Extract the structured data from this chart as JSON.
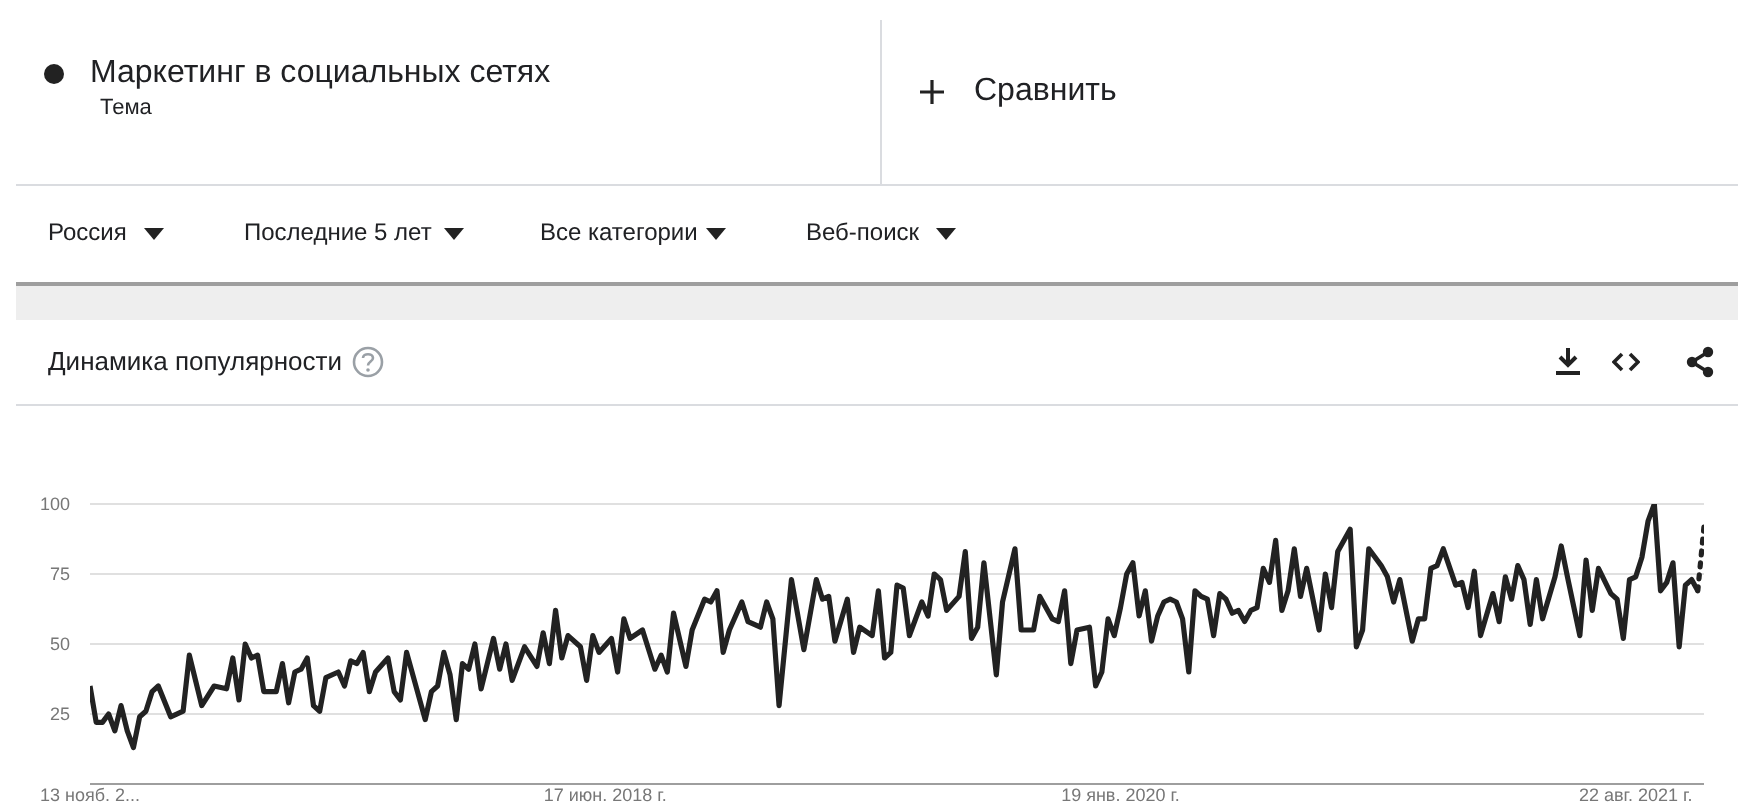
{
  "chart_data": {
    "type": "line",
    "title": "Динамика популярности",
    "annotations": [
      "Тема",
      "Сравнить",
      "Россия",
      "Последние 5 лет",
      "Все категории",
      "Веб-поиск"
    ],
    "series": [
      {
        "name": "Маркетинг в социальных сетях",
        "color": "#222222",
        "line_style": "solid",
        "x": [
          "2016-11-13",
          "2016-11-20",
          "2016-11-27",
          "2016-12-04",
          "2016-12-11",
          "2016-12-18",
          "2016-12-25",
          "2017-01-01",
          "2017-01-08",
          "2017-01-15",
          "2017-01-22",
          "2017-01-29",
          "2017-02-12",
          "2017-02-26",
          "2017-03-05",
          "2017-03-19",
          "2017-04-02",
          "2017-04-16",
          "2017-04-23",
          "2017-04-30",
          "2017-05-07",
          "2017-05-14",
          "2017-05-21",
          "2017-05-28",
          "2017-06-11",
          "2017-06-18",
          "2017-06-25",
          "2017-07-02",
          "2017-07-09",
          "2017-07-16",
          "2017-07-23",
          "2017-07-30",
          "2017-08-06",
          "2017-08-20",
          "2017-08-27",
          "2017-09-03",
          "2017-09-10",
          "2017-09-17",
          "2017-09-24",
          "2017-10-01",
          "2017-10-15",
          "2017-10-22",
          "2017-10-29",
          "2017-11-05",
          "2017-11-26",
          "2017-12-03",
          "2017-12-10",
          "2017-12-17",
          "2017-12-24",
          "2017-12-31",
          "2018-01-07",
          "2018-01-14",
          "2018-01-21",
          "2018-01-28",
          "2018-02-11",
          "2018-02-18",
          "2018-02-25",
          "2018-03-04",
          "2018-03-18",
          "2018-04-01",
          "2018-04-08",
          "2018-04-15",
          "2018-04-22",
          "2018-04-29",
          "2018-05-06",
          "2018-05-20",
          "2018-05-27",
          "2018-06-03",
          "2018-06-10",
          "2018-06-24",
          "2018-07-01",
          "2018-07-08",
          "2018-07-15",
          "2018-07-29",
          "2018-08-12",
          "2018-08-19",
          "2018-08-26",
          "2018-09-02",
          "2018-09-16",
          "2018-09-23",
          "2018-10-07",
          "2018-10-14",
          "2018-10-21",
          "2018-10-28",
          "2018-11-04",
          "2018-11-18",
          "2018-11-25",
          "2018-12-09",
          "2018-12-16",
          "2018-12-23",
          "2018-12-30",
          "2019-01-13",
          "2019-01-27",
          "2019-02-10",
          "2019-02-17",
          "2019-02-24",
          "2019-03-03",
          "2019-03-17",
          "2019-03-24",
          "2019-03-31",
          "2019-04-14",
          "2019-04-21",
          "2019-04-28",
          "2019-05-05",
          "2019-05-12",
          "2019-05-19",
          "2019-05-26",
          "2019-06-09",
          "2019-06-16",
          "2019-06-23",
          "2019-06-30",
          "2019-07-07",
          "2019-07-21",
          "2019-07-28",
          "2019-08-04",
          "2019-08-11",
          "2019-08-18",
          "2019-09-01",
          "2019-09-08",
          "2019-09-22",
          "2019-09-29",
          "2019-10-13",
          "2019-10-20",
          "2019-11-03",
          "2019-11-10",
          "2019-11-17",
          "2019-11-24",
          "2019-12-01",
          "2019-12-15",
          "2019-12-22",
          "2019-12-29",
          "2020-01-05",
          "2020-01-12",
          "2020-01-19",
          "2020-01-26",
          "2020-02-02",
          "2020-02-09",
          "2020-02-16",
          "2020-02-23",
          "2020-03-01",
          "2020-03-08",
          "2020-03-15",
          "2020-03-22",
          "2020-03-29",
          "2020-04-05",
          "2020-04-12",
          "2020-04-19",
          "2020-04-26",
          "2020-05-03",
          "2020-05-10",
          "2020-05-17",
          "2020-05-24",
          "2020-05-31",
          "2020-06-07",
          "2020-06-14",
          "2020-06-21",
          "2020-06-28",
          "2020-07-05",
          "2020-07-12",
          "2020-07-19",
          "2020-07-26",
          "2020-08-02",
          "2020-08-09",
          "2020-08-16",
          "2020-08-30",
          "2020-09-06",
          "2020-09-13",
          "2020-09-20",
          "2020-10-04",
          "2020-10-11",
          "2020-10-18",
          "2020-10-25",
          "2020-11-08",
          "2020-11-15",
          "2020-11-22",
          "2020-11-29",
          "2020-12-13",
          "2020-12-20",
          "2020-12-27",
          "2021-01-03",
          "2021-01-10",
          "2021-01-17",
          "2021-01-31",
          "2021-02-07",
          "2021-02-14",
          "2021-02-21",
          "2021-02-28",
          "2021-03-14",
          "2021-03-21",
          "2021-03-28",
          "2021-04-04",
          "2021-04-11",
          "2021-04-18",
          "2021-04-25",
          "2021-05-02",
          "2021-05-09",
          "2021-05-23",
          "2021-05-30",
          "2021-06-06",
          "2021-06-20",
          "2021-06-27",
          "2021-07-04",
          "2021-07-11",
          "2021-07-25",
          "2021-08-01",
          "2021-08-08",
          "2021-08-15",
          "2021-08-22",
          "2021-08-29",
          "2021-09-05",
          "2021-09-12",
          "2021-09-19",
          "2021-09-26",
          "2021-10-03",
          "2021-10-10",
          "2021-10-17",
          "2021-10-24",
          "2021-10-31"
        ],
        "values": [
          35,
          22,
          22,
          25,
          19,
          28,
          19,
          13,
          24,
          26,
          33,
          35,
          24,
          26,
          46,
          28,
          35,
          34,
          45,
          30,
          50,
          45,
          46,
          33,
          33,
          43,
          29,
          40,
          41,
          45,
          28,
          26,
          38,
          40,
          35,
          44,
          43,
          47,
          33,
          40,
          45,
          33,
          30,
          47,
          23,
          33,
          35,
          47,
          39,
          23,
          43,
          41,
          50,
          34,
          52,
          41,
          50,
          37,
          49,
          42,
          54,
          43,
          62,
          45,
          53,
          49,
          37,
          53,
          47,
          52,
          40,
          59,
          52,
          55,
          41,
          46,
          40,
          61,
          42,
          55,
          66,
          65,
          69,
          47,
          55,
          65,
          58,
          56,
          65,
          59,
          28,
          73,
          48,
          73,
          66,
          67,
          51,
          66,
          47,
          56,
          53,
          69,
          45,
          47,
          71,
          70,
          53,
          65,
          60,
          75,
          73,
          62,
          67,
          83,
          52,
          56,
          79,
          39,
          65,
          84,
          55,
          55,
          67,
          59,
          58,
          69,
          43,
          55,
          56,
          35,
          40,
          59,
          53,
          63,
          75,
          79,
          60,
          69,
          51,
          60,
          65,
          66,
          65,
          59,
          40,
          69,
          67,
          66,
          53,
          68,
          66,
          61,
          62,
          58,
          62,
          63,
          77,
          72,
          87,
          62,
          69,
          84,
          67,
          77,
          55,
          75,
          63,
          83,
          91,
          49,
          55,
          84,
          78,
          74,
          65,
          73,
          51,
          59,
          59,
          77,
          78,
          84,
          71,
          72,
          63,
          76,
          53,
          68,
          58,
          74,
          66,
          78,
          73,
          57,
          73,
          59,
          74,
          85,
          74,
          53,
          80,
          62,
          77,
          68,
          66,
          52,
          73,
          74,
          81,
          94,
          100,
          69,
          72,
          79,
          49,
          71,
          73,
          69
        ]
      },
      {
        "color": "#222222",
        "line_style": "dotted",
        "x": [
          "2021-10-31",
          "2021-11-07"
        ],
        "values": [
          69,
          92
        ]
      }
    ],
    "xlim": [
      "2016-11-13",
      "2021-11-07"
    ],
    "xticks": [
      {
        "value": "2016-11-13",
        "label": "13 нояб. 2..."
      },
      {
        "value": "2018-06-17",
        "label": "17 июн. 2018 г."
      },
      {
        "value": "2020-01-19",
        "label": "19 янв. 2020 г."
      },
      {
        "value": "2021-08-22",
        "label": "22 авг. 2021 г."
      }
    ],
    "ylim": [
      0,
      100
    ],
    "yticks": [
      25,
      50,
      75,
      100
    ],
    "grid": "y",
    "legend": "top left",
    "marker": "none"
  }
}
